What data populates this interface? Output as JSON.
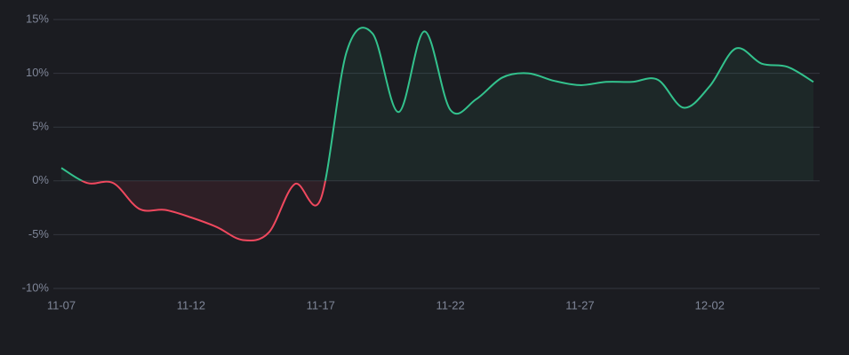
{
  "chart_data": {
    "type": "line",
    "categories": [
      "11-07",
      null,
      null,
      null,
      null,
      "11-12",
      null,
      null,
      null,
      null,
      "11-17",
      null,
      null,
      null,
      null,
      "11-22",
      null,
      null,
      null,
      null,
      "11-27",
      null,
      null,
      null,
      null,
      "12-02",
      null,
      null,
      null,
      null
    ],
    "values": [
      1.2,
      -0.2,
      -0.2,
      -2.6,
      -2.7,
      -3.4,
      -4.3,
      -5.5,
      -4.8,
      -0.3,
      -1.7,
      12.0,
      13.7,
      6.4,
      13.9,
      6.6,
      7.6,
      9.6,
      10.0,
      9.3,
      8.9,
      9.2,
      9.2,
      9.4,
      6.8,
      8.8,
      12.3,
      10.9,
      10.6,
      9.2
    ],
    "color_positive": "#33c28d",
    "color_negative": "#f0485e",
    "ylim": [
      -10,
      15
    ],
    "yticks": [
      {
        "value": -10,
        "label": "-10%"
      },
      {
        "value": -5,
        "label": "-5%"
      },
      {
        "value": 0,
        "label": "0%"
      },
      {
        "value": 5,
        "label": "5%"
      },
      {
        "value": 10,
        "label": "10%"
      },
      {
        "value": 15,
        "label": "15%"
      }
    ],
    "grid": true
  }
}
